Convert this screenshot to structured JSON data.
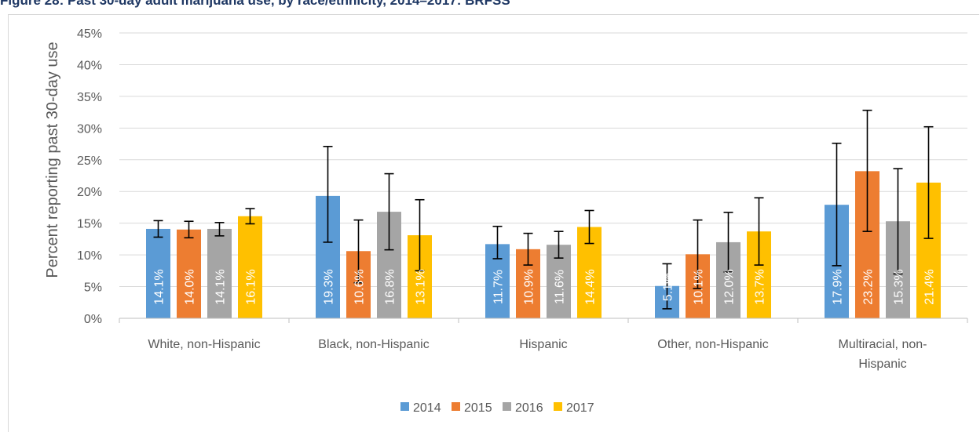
{
  "figure_title": "Figure 28: Past 30-day adult marijuana use, by race/ethnicity, 2014–2017: BRFSS",
  "chart_data": {
    "type": "bar",
    "title": "",
    "ylabel": "Percent reporting past 30-day use",
    "xlabel": "",
    "ylim": [
      0,
      45
    ],
    "yticks": [
      "0%",
      "5%",
      "10%",
      "15%",
      "20%",
      "25%",
      "30%",
      "35%",
      "40%",
      "45%"
    ],
    "ytick_values": [
      0,
      5,
      10,
      15,
      20,
      25,
      30,
      35,
      40,
      45
    ],
    "grid": true,
    "legend_position": "bottom",
    "categories": [
      [
        "White, non-Hispanic"
      ],
      [
        "Black, non-Hispanic"
      ],
      [
        "Hispanic"
      ],
      [
        "Other, non-Hispanic"
      ],
      [
        "Multiracial, non-",
        "Hispanic"
      ]
    ],
    "series": [
      {
        "name": "2014",
        "color": "#5b9bd5",
        "values": [
          14.1,
          19.3,
          11.7,
          5.1,
          17.9
        ],
        "labels": [
          "14.1%",
          "19.3%",
          "11.7%",
          "5.1%",
          "17.9%"
        ],
        "error_low": [
          12.8,
          12.0,
          9.4,
          1.5,
          8.3
        ],
        "error_high": [
          15.4,
          27.1,
          14.5,
          8.6,
          27.6
        ]
      },
      {
        "name": "2015",
        "color": "#ed7d31",
        "values": [
          14.0,
          10.6,
          10.9,
          10.1,
          23.2
        ],
        "labels": [
          "14.0%",
          "10.6%",
          "10.9%",
          "10.1%",
          "23.2%"
        ],
        "error_low": [
          12.7,
          5.6,
          8.4,
          4.7,
          13.7
        ],
        "error_high": [
          15.3,
          15.5,
          13.4,
          15.5,
          32.8
        ]
      },
      {
        "name": "2016",
        "color": "#a5a5a5",
        "values": [
          14.1,
          16.8,
          11.6,
          12.0,
          15.3
        ],
        "labels": [
          "14.1%",
          "16.8%",
          "11.6%",
          "12.0%",
          "15.3%"
        ],
        "error_low": [
          13.0,
          10.8,
          9.5,
          7.3,
          7.0
        ],
        "error_high": [
          15.1,
          22.8,
          13.7,
          16.7,
          23.6
        ]
      },
      {
        "name": "2017",
        "color": "#ffc000",
        "values": [
          16.1,
          13.1,
          14.4,
          13.7,
          21.4
        ],
        "labels": [
          "16.1%",
          "13.1%",
          "14.4%",
          "13.7%",
          "21.4%"
        ],
        "error_low": [
          14.9,
          7.5,
          11.8,
          8.4,
          12.6
        ],
        "error_high": [
          17.3,
          18.7,
          17.0,
          19.0,
          30.2
        ]
      }
    ]
  }
}
